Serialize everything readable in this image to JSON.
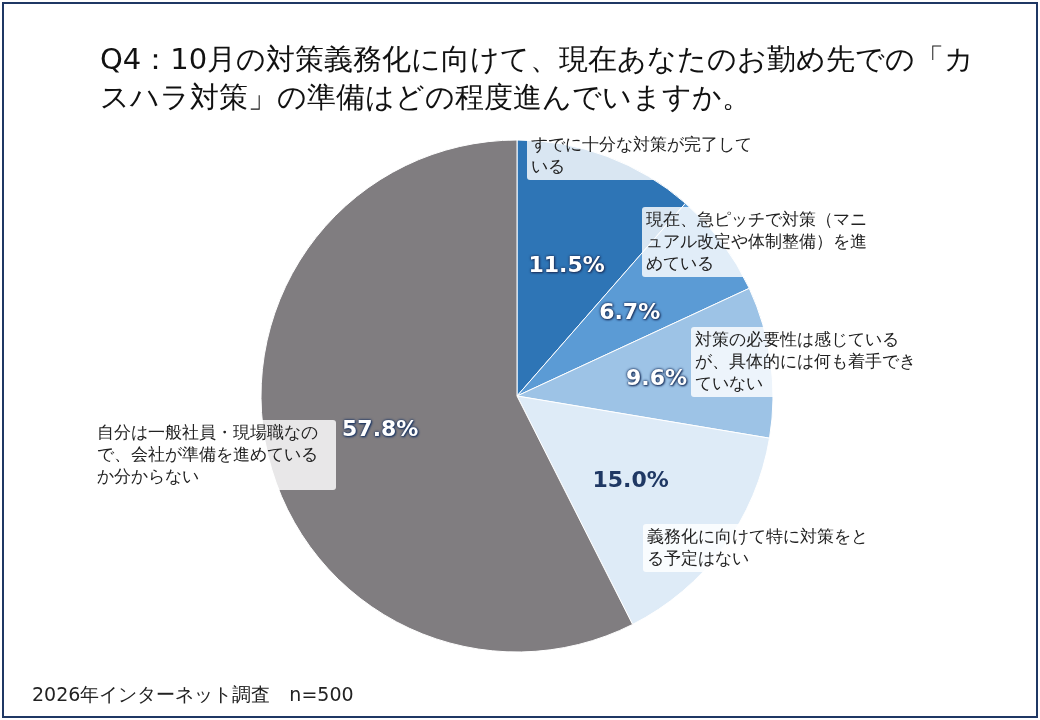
{
  "chart_data": {
    "type": "pie",
    "title": "Q4：10月の対策義務化に向けて、現在あなたのお勤め先での「カスハラ対策」の準備はどの程度進んでいますか。",
    "categories": [
      "すでに十分な対策が完了している",
      "現在、急ピッチで対策（マニュアル改定や体制整備）を進めている",
      "対策の必要性は感じているが、具体的には何も着手できていない",
      "義務化に向けて特に対策をとる予定はない",
      "自分は一般社員・現場職なので、会社が準備を進めているか分からない"
    ],
    "values": [
      11.5,
      6.7,
      9.6,
      15.0,
      57.8
    ],
    "colors": [
      "#2e75b6",
      "#5b9bd5",
      "#9dc3e6",
      "#deebf7",
      "#807d80"
    ],
    "value_labels": [
      "11.5%",
      "6.7%",
      "9.6%",
      "15.0%",
      "57.8%"
    ],
    "annotations": [
      "2026年インターネット調査　n=500"
    ]
  }
}
